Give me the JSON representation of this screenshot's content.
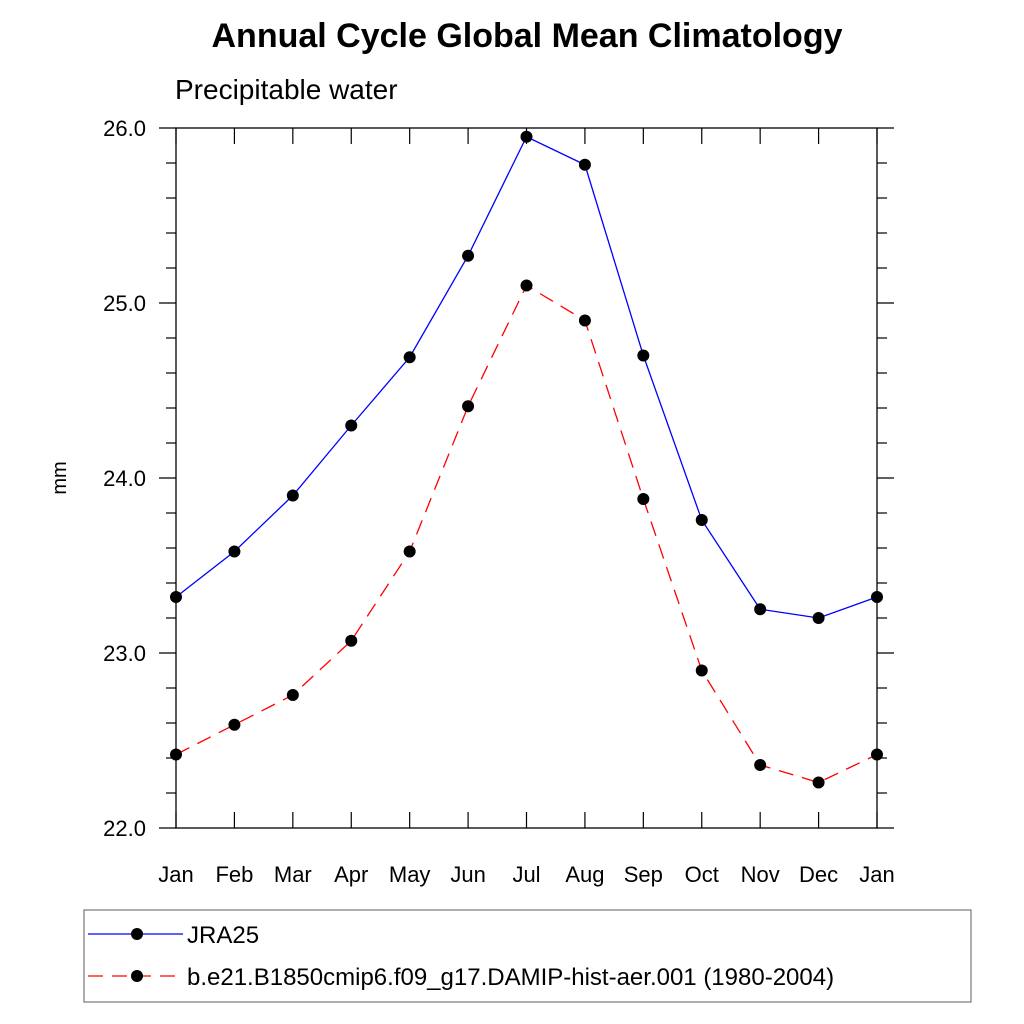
{
  "chart_data": {
    "type": "line",
    "title": "Annual Cycle Global Mean Climatology",
    "subtitle": "Precipitable water",
    "xlabel": "",
    "ylabel": "mm",
    "categories": [
      "Jan",
      "Feb",
      "Mar",
      "Apr",
      "May",
      "Jun",
      "Jul",
      "Aug",
      "Sep",
      "Oct",
      "Nov",
      "Dec",
      "Jan"
    ],
    "ylim": [
      22.0,
      26.0
    ],
    "y_major_ticks": [
      22.0,
      23.0,
      24.0,
      25.0,
      26.0
    ],
    "y_major_tick_labels": [
      "22.0",
      "23.0",
      "24.0",
      "25.0",
      "26.0"
    ],
    "y_minor_step": 0.2,
    "grid": false,
    "legend_position": "bottom",
    "series": [
      {
        "name": "JRA25",
        "color": "#0000ff",
        "line_style": "solid",
        "marker": "filled-circle",
        "values": [
          23.32,
          23.58,
          23.9,
          24.3,
          24.69,
          25.27,
          25.95,
          25.79,
          24.7,
          23.76,
          23.25,
          23.2,
          23.32
        ]
      },
      {
        "name": "b.e21.B1850cmip6.f09_g17.DAMIP-hist-aer.001 (1980-2004)",
        "color": "#ff0000",
        "line_style": "dashed",
        "marker": "filled-circle",
        "values": [
          22.42,
          22.59,
          22.76,
          23.07,
          23.58,
          24.41,
          25.1,
          24.9,
          23.88,
          22.9,
          22.36,
          22.26,
          22.42
        ]
      }
    ]
  }
}
